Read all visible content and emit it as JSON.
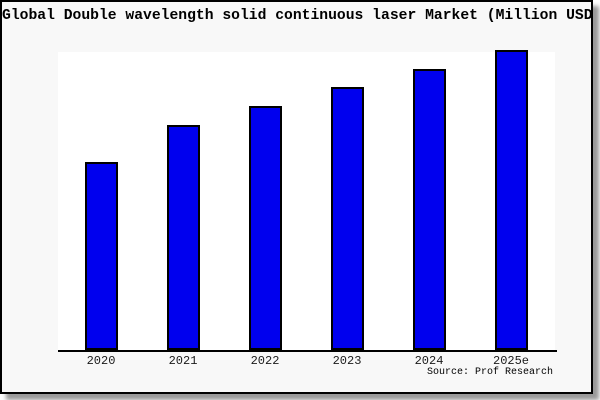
{
  "card": {
    "background": "#f8f8f8",
    "border_color": "#000000",
    "shadow_color": "#999999"
  },
  "source_label": "Source: Prof Research",
  "chart_data": {
    "type": "bar",
    "title": "Global Double wavelength solid continuous laser Market (Million USD)",
    "categories": [
      "2020",
      "2021",
      "2022",
      "2023",
      "2024",
      "2025e"
    ],
    "values": [
      62.7,
      75.0,
      81.3,
      87.7,
      93.7,
      100.0
    ],
    "value_note": "no y-axis ticks or data labels are shown; values estimated from bar heights relative to 2025e = 100",
    "xlabel": "",
    "ylabel": "",
    "ylim": [
      0,
      105
    ],
    "grid": false,
    "legend": false,
    "bar_color": "#0000ee",
    "bar_border_color": "#000000",
    "plot_background": "#ffffff",
    "axis_color": "#000000"
  }
}
